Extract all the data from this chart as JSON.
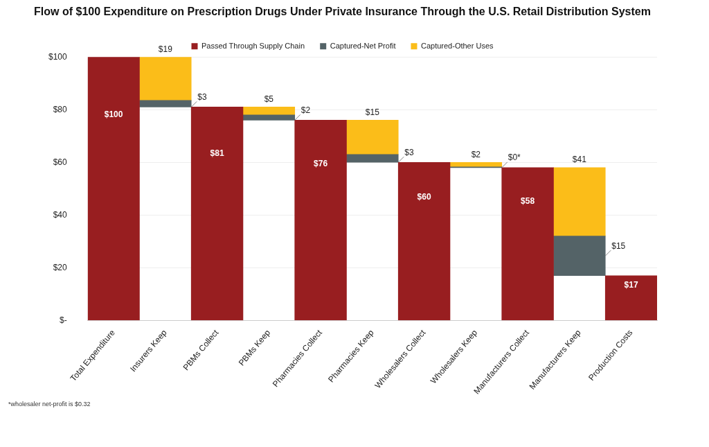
{
  "chart_data": {
    "type": "bar",
    "title": "Flow of $100 Expenditure on Prescription Drugs Under Private Insurance Through the U.S. Retail Distribution System",
    "categories": [
      "Total Expenditure",
      "Insurers Keep",
      "PBMs Collect",
      "PBMs Keep",
      "Pharmacies Collect",
      "Pharmacies Keep",
      "Wholesalers Collect",
      "Wholesalers Keep",
      "Manufacturers Collect",
      "Manufacturers Keep",
      "Production Costs"
    ],
    "series": [
      {
        "name": "Passed Through Supply Chain",
        "color": "#981e20",
        "values": [
          100,
          null,
          81,
          null,
          76,
          null,
          60,
          null,
          58,
          null,
          17
        ],
        "value_labels": [
          "$100",
          null,
          "$81",
          null,
          "$76",
          null,
          "$60",
          null,
          "$58",
          null,
          "$17"
        ]
      },
      {
        "name": "Captured-Net Profit",
        "color": "#546367",
        "base": [
          null,
          81,
          null,
          76,
          null,
          60,
          null,
          58,
          null,
          17,
          null
        ],
        "values": [
          null,
          2.5,
          null,
          2,
          null,
          3,
          null,
          0.3,
          null,
          15,
          null
        ],
        "value_labels": [
          null,
          "$3",
          null,
          "$2",
          null,
          "$3",
          null,
          "$0*",
          null,
          "$15",
          null
        ]
      },
      {
        "name": "Captured-Other Uses",
        "color": "#fbbd19",
        "base": [
          null,
          83.5,
          null,
          78,
          null,
          63,
          null,
          58.3,
          null,
          32,
          null
        ],
        "values": [
          null,
          16.5,
          null,
          3,
          null,
          13,
          null,
          1.7,
          null,
          26,
          null
        ]
      }
    ],
    "ylim": [
      0,
      100
    ],
    "yticks": [
      {
        "value": 0,
        "label": "$-"
      },
      {
        "value": 20,
        "label": "$20"
      },
      {
        "value": 40,
        "label": "$40"
      },
      {
        "value": 60,
        "label": "$60"
      },
      {
        "value": 80,
        "label": "$80"
      },
      {
        "value": 100,
        "label": "$100"
      }
    ],
    "grid": "y",
    "legend": "top",
    "annotations": [
      {
        "text": "$19",
        "x": "Insurers Keep",
        "y": 100
      },
      {
        "text": "$5",
        "x": "PBMs Keep",
        "y": 81
      },
      {
        "text": "$15",
        "x": "Pharmacies Keep",
        "y": 76
      },
      {
        "text": "$2",
        "x": "Wholesalers Keep",
        "y": 60
      },
      {
        "text": "$41",
        "x": "Manufacturers Keep",
        "y": 58
      },
      "*wholesaler net-profit is $0.32"
    ]
  }
}
